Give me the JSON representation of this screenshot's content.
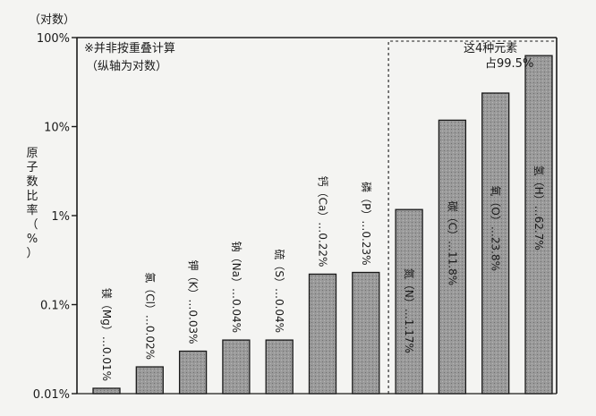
{
  "chart_data": {
    "type": "bar",
    "y_unit_label": "（对数）",
    "ylabel": "原子数比率（%）",
    "yscale": "log",
    "ylim": [
      0.01,
      100
    ],
    "y_ticks": [
      {
        "value": 0.01,
        "label": "0.01%"
      },
      {
        "value": 0.1,
        "label": "0.1%"
      },
      {
        "value": 1,
        "label": "1%"
      },
      {
        "value": 10,
        "label": "10%"
      },
      {
        "value": 100,
        "label": "100%"
      }
    ],
    "notes": [
      "※并非按重叠计算",
      "（纵轴为对数）"
    ],
    "annotation": {
      "lines": [
        "这4种元素",
        "占99.5%"
      ],
      "group_start_index": 7
    },
    "bars": [
      {
        "label": "镁（Mg）…0.01%",
        "value": 0.01
      },
      {
        "label": "氯（Cl）…0.02%",
        "value": 0.02
      },
      {
        "label": "钾（K）…0.03%",
        "value": 0.03
      },
      {
        "label": "钠（Na）…0.04%",
        "value": 0.04
      },
      {
        "label": "硫（S）…0.04%",
        "value": 0.04
      },
      {
        "label": "钙（Ca）…0.22%",
        "value": 0.22
      },
      {
        "label": "磷（P）…0.23%",
        "value": 0.23
      },
      {
        "label": "氮（N）…1.17%",
        "value": 1.17
      },
      {
        "label": "碳（C）…11.8%",
        "value": 11.8
      },
      {
        "label": "氧（O）…23.8%",
        "value": 23.8
      },
      {
        "label": "氢（H）…62.7%",
        "value": 62.7
      }
    ],
    "grid": false,
    "legend": "none"
  }
}
